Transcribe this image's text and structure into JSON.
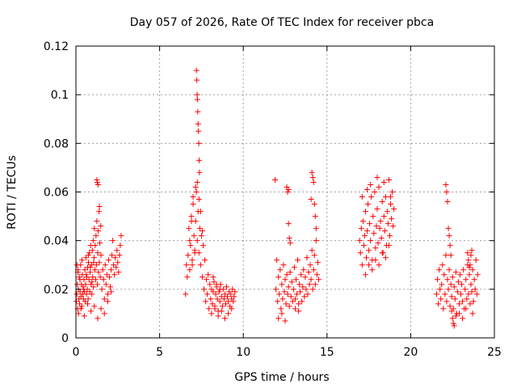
{
  "chart_data": {
    "type": "scatter",
    "title": "Day 057 of 2026, Rate Of TEC Index for receiver pbca",
    "xlabel": "GPS time / hours",
    "ylabel": "ROTI / TECUs",
    "xlim": [
      0,
      25
    ],
    "ylim": [
      0,
      0.12
    ],
    "xticks": [
      "0",
      "5",
      "10",
      "15",
      "20",
      "25"
    ],
    "yticks": [
      "0",
      "0.02",
      "0.04",
      "0.06",
      "0.08",
      "0.1",
      "0.12"
    ],
    "grid": true,
    "marker": "plus",
    "color": "#ff0000",
    "series": [
      {
        "x": [
          0.02,
          0.05,
          0.08,
          0.1,
          0.13,
          0.15,
          0.18,
          0.2,
          0.22,
          0.25,
          0.28,
          0.3,
          0.33,
          0.35,
          0.38,
          0.4,
          0.43,
          0.45,
          0.48,
          0.5,
          0.53,
          0.55,
          0.58,
          0.6,
          0.63,
          0.65,
          0.68,
          0.7,
          0.73,
          0.75,
          0.78,
          0.8,
          0.83,
          0.85,
          0.88,
          0.9,
          0.93,
          0.95,
          0.98,
          1.0,
          1.03,
          1.05,
          1.08,
          1.1,
          1.13,
          1.15,
          1.18,
          1.2,
          1.22,
          1.25,
          1.28,
          1.3,
          1.33,
          1.35,
          1.38,
          1.4,
          1.43,
          1.45,
          1.48,
          1.5,
          1.55,
          1.6,
          1.65,
          1.7,
          1.75,
          1.8,
          1.85,
          1.9,
          1.95,
          2.0,
          2.05,
          2.1,
          2.15,
          2.2,
          2.25,
          2.3,
          2.35,
          2.4,
          2.45,
          2.5,
          2.55,
          2.6,
          2.65,
          2.7,
          1.25,
          1.28,
          1.32,
          1.4,
          0.15,
          0.3,
          0.5,
          0.7,
          0.9,
          1.1,
          1.3,
          1.5,
          1.7,
          1.9,
          2.1,
          0.06,
          0.12,
          0.24,
          0.36,
          0.46,
          0.62,
          0.74,
          0.86,
          0.96,
          1.06
        ],
        "y": [
          0.015,
          0.018,
          0.022,
          0.012,
          0.028,
          0.02,
          0.016,
          0.025,
          0.014,
          0.019,
          0.03,
          0.017,
          0.022,
          0.013,
          0.026,
          0.018,
          0.021,
          0.016,
          0.024,
          0.019,
          0.028,
          0.015,
          0.022,
          0.033,
          0.018,
          0.025,
          0.02,
          0.029,
          0.016,
          0.031,
          0.024,
          0.035,
          0.019,
          0.027,
          0.038,
          0.022,
          0.03,
          0.018,
          0.036,
          0.025,
          0.04,
          0.021,
          0.033,
          0.045,
          0.028,
          0.038,
          0.024,
          0.042,
          0.03,
          0.048,
          0.022,
          0.035,
          0.044,
          0.027,
          0.052,
          0.031,
          0.039,
          0.025,
          0.046,
          0.034,
          0.02,
          0.028,
          0.024,
          0.016,
          0.03,
          0.022,
          0.026,
          0.018,
          0.032,
          0.025,
          0.021,
          0.028,
          0.034,
          0.04,
          0.03,
          0.026,
          0.033,
          0.029,
          0.036,
          0.031,
          0.027,
          0.034,
          0.038,
          0.042,
          0.065,
          0.064,
          0.063,
          0.054,
          0.01,
          0.012,
          0.009,
          0.014,
          0.011,
          0.013,
          0.008,
          0.012,
          0.01,
          0.015,
          0.019,
          0.03,
          0.027,
          0.024,
          0.032,
          0.02,
          0.026,
          0.034,
          0.029,
          0.023,
          0.031
        ]
      },
      {
        "x": [
          6.55,
          6.6,
          6.65,
          6.7,
          6.75,
          6.8,
          6.85,
          6.9,
          6.95,
          7.0,
          7.05,
          7.1,
          7.15,
          7.2,
          7.25,
          7.3,
          7.35,
          7.4,
          7.45,
          7.5,
          7.55,
          7.6,
          7.65,
          7.7,
          7.75,
          7.8,
          7.85,
          7.9,
          7.95,
          8.0,
          8.05,
          8.1,
          8.15,
          8.2,
          8.25,
          8.3,
          8.35,
          8.4,
          8.45,
          8.5,
          8.55,
          8.6,
          8.65,
          8.7,
          8.75,
          8.8,
          8.85,
          8.9,
          8.95,
          9.0,
          9.05,
          9.1,
          9.15,
          9.2,
          9.25,
          9.3,
          9.35,
          9.4,
          9.45,
          9.5,
          7.2,
          7.22,
          7.24,
          7.26,
          7.28,
          7.3,
          7.32,
          7.34,
          7.36,
          7.38,
          7.15,
          7.25,
          7.35,
          7.45,
          7.55,
          6.8,
          6.9,
          7.0,
          7.1,
          6.95,
          8.1,
          8.3,
          8.5,
          8.7,
          8.9,
          9.1,
          9.3,
          8.2,
          8.4,
          8.6
        ],
        "y": [
          0.018,
          0.03,
          0.025,
          0.034,
          0.045,
          0.028,
          0.038,
          0.05,
          0.032,
          0.055,
          0.042,
          0.036,
          0.048,
          0.06,
          0.04,
          0.052,
          0.035,
          0.045,
          0.03,
          0.042,
          0.025,
          0.038,
          0.02,
          0.032,
          0.015,
          0.024,
          0.018,
          0.026,
          0.012,
          0.022,
          0.016,
          0.02,
          0.014,
          0.019,
          0.023,
          0.013,
          0.018,
          0.021,
          0.016,
          0.011,
          0.019,
          0.015,
          0.022,
          0.017,
          0.013,
          0.02,
          0.016,
          0.018,
          0.014,
          0.021,
          0.017,
          0.015,
          0.019,
          0.013,
          0.018,
          0.016,
          0.02,
          0.015,
          0.017,
          0.019,
          0.11,
          0.106,
          0.1,
          0.098,
          0.093,
          0.088,
          0.085,
          0.08,
          0.073,
          0.068,
          0.062,
          0.064,
          0.057,
          0.052,
          0.044,
          0.04,
          0.048,
          0.058,
          0.035,
          0.03,
          0.01,
          0.012,
          0.009,
          0.011,
          0.008,
          0.01,
          0.012,
          0.025,
          0.022,
          0.02
        ]
      },
      {
        "x": [
          11.95,
          12.0,
          12.05,
          12.1,
          12.15,
          12.2,
          12.25,
          12.3,
          12.35,
          12.4,
          12.45,
          12.5,
          12.55,
          12.6,
          12.65,
          12.7,
          12.75,
          12.8,
          12.85,
          12.9,
          12.95,
          13.0,
          13.05,
          13.1,
          13.15,
          13.2,
          13.25,
          13.3,
          13.35,
          13.4,
          13.45,
          13.5,
          13.55,
          13.6,
          13.65,
          13.7,
          13.75,
          13.8,
          13.85,
          13.9,
          13.95,
          14.0,
          14.05,
          14.1,
          14.15,
          14.2,
          14.25,
          14.3,
          14.35,
          14.4,
          14.45,
          14.5,
          11.9,
          12.6,
          12.65,
          12.7,
          14.1,
          14.15,
          14.2,
          12.7,
          12.75,
          12.8,
          14.05,
          14.25,
          14.3,
          14.35,
          12.1,
          12.3,
          12.5,
          13.1,
          13.3
        ],
        "y": [
          0.02,
          0.032,
          0.015,
          0.025,
          0.018,
          0.028,
          0.012,
          0.022,
          0.016,
          0.03,
          0.019,
          0.024,
          0.014,
          0.026,
          0.018,
          0.021,
          0.013,
          0.027,
          0.017,
          0.023,
          0.015,
          0.02,
          0.029,
          0.016,
          0.024,
          0.018,
          0.032,
          0.014,
          0.022,
          0.019,
          0.026,
          0.015,
          0.021,
          0.028,
          0.017,
          0.025,
          0.02,
          0.033,
          0.018,
          0.027,
          0.022,
          0.03,
          0.024,
          0.036,
          0.02,
          0.028,
          0.034,
          0.022,
          0.04,
          0.026,
          0.031,
          0.024,
          0.065,
          0.062,
          0.06,
          0.061,
          0.068,
          0.066,
          0.064,
          0.047,
          0.041,
          0.039,
          0.057,
          0.055,
          0.05,
          0.045,
          0.008,
          0.01,
          0.007,
          0.012,
          0.011
        ]
      },
      {
        "x": [
          16.95,
          17.0,
          17.05,
          17.1,
          17.15,
          17.2,
          17.25,
          17.3,
          17.35,
          17.4,
          17.45,
          17.5,
          17.55,
          17.6,
          17.65,
          17.7,
          17.75,
          17.8,
          17.85,
          17.9,
          17.95,
          18.0,
          18.05,
          18.1,
          18.15,
          18.2,
          18.25,
          18.3,
          18.35,
          18.4,
          18.45,
          18.5,
          18.55,
          18.6,
          18.65,
          18.7,
          18.75,
          18.8,
          18.85,
          18.9,
          18.95,
          19.0,
          17.3,
          17.5,
          17.7,
          17.9,
          18.1,
          18.3,
          18.5,
          18.7,
          17.1,
          17.4,
          17.6,
          18.0,
          18.4,
          18.8
        ],
        "y": [
          0.04,
          0.035,
          0.045,
          0.03,
          0.048,
          0.038,
          0.042,
          0.052,
          0.033,
          0.044,
          0.055,
          0.036,
          0.047,
          0.04,
          0.058,
          0.032,
          0.05,
          0.043,
          0.06,
          0.037,
          0.046,
          0.053,
          0.039,
          0.062,
          0.045,
          0.048,
          0.041,
          0.056,
          0.035,
          0.05,
          0.044,
          0.058,
          0.038,
          0.052,
          0.047,
          0.065,
          0.042,
          0.055,
          0.049,
          0.06,
          0.046,
          0.053,
          0.026,
          0.03,
          0.028,
          0.032,
          0.03,
          0.035,
          0.033,
          0.038,
          0.058,
          0.061,
          0.063,
          0.066,
          0.064,
          0.058
        ]
      },
      {
        "x": [
          21.55,
          21.6,
          21.65,
          21.7,
          21.75,
          21.8,
          21.85,
          21.9,
          21.95,
          22.0,
          22.05,
          22.1,
          22.15,
          22.2,
          22.25,
          22.3,
          22.35,
          22.4,
          22.45,
          22.5,
          22.55,
          22.6,
          22.65,
          22.7,
          22.75,
          22.8,
          22.85,
          22.9,
          22.95,
          23.0,
          23.05,
          23.1,
          23.15,
          23.2,
          23.25,
          23.3,
          23.35,
          23.4,
          23.45,
          23.5,
          23.55,
          23.6,
          23.65,
          23.7,
          23.75,
          23.8,
          23.85,
          23.9,
          23.95,
          24.0,
          22.1,
          22.15,
          22.2,
          22.25,
          22.3,
          22.35,
          22.4,
          22.5,
          22.55,
          22.6,
          23.4,
          23.45,
          23.5,
          23.55,
          23.6,
          23.65,
          22.45,
          22.7,
          22.9,
          23.1,
          23.3,
          23.7
        ],
        "y": [
          0.018,
          0.024,
          0.014,
          0.028,
          0.02,
          0.016,
          0.022,
          0.03,
          0.012,
          0.026,
          0.018,
          0.034,
          0.015,
          0.024,
          0.02,
          0.028,
          0.013,
          0.022,
          0.017,
          0.025,
          0.012,
          0.021,
          0.016,
          0.027,
          0.01,
          0.019,
          0.023,
          0.014,
          0.026,
          0.018,
          0.022,
          0.015,
          0.028,
          0.012,
          0.02,
          0.024,
          0.016,
          0.03,
          0.018,
          0.026,
          0.014,
          0.022,
          0.019,
          0.028,
          0.015,
          0.024,
          0.02,
          0.032,
          0.018,
          0.026,
          0.063,
          0.06,
          0.056,
          0.045,
          0.042,
          0.038,
          0.034,
          0.008,
          0.006,
          0.005,
          0.035,
          0.032,
          0.029,
          0.03,
          0.034,
          0.036,
          0.011,
          0.009,
          0.01,
          0.008,
          0.012,
          0.01
        ]
      }
    ]
  }
}
